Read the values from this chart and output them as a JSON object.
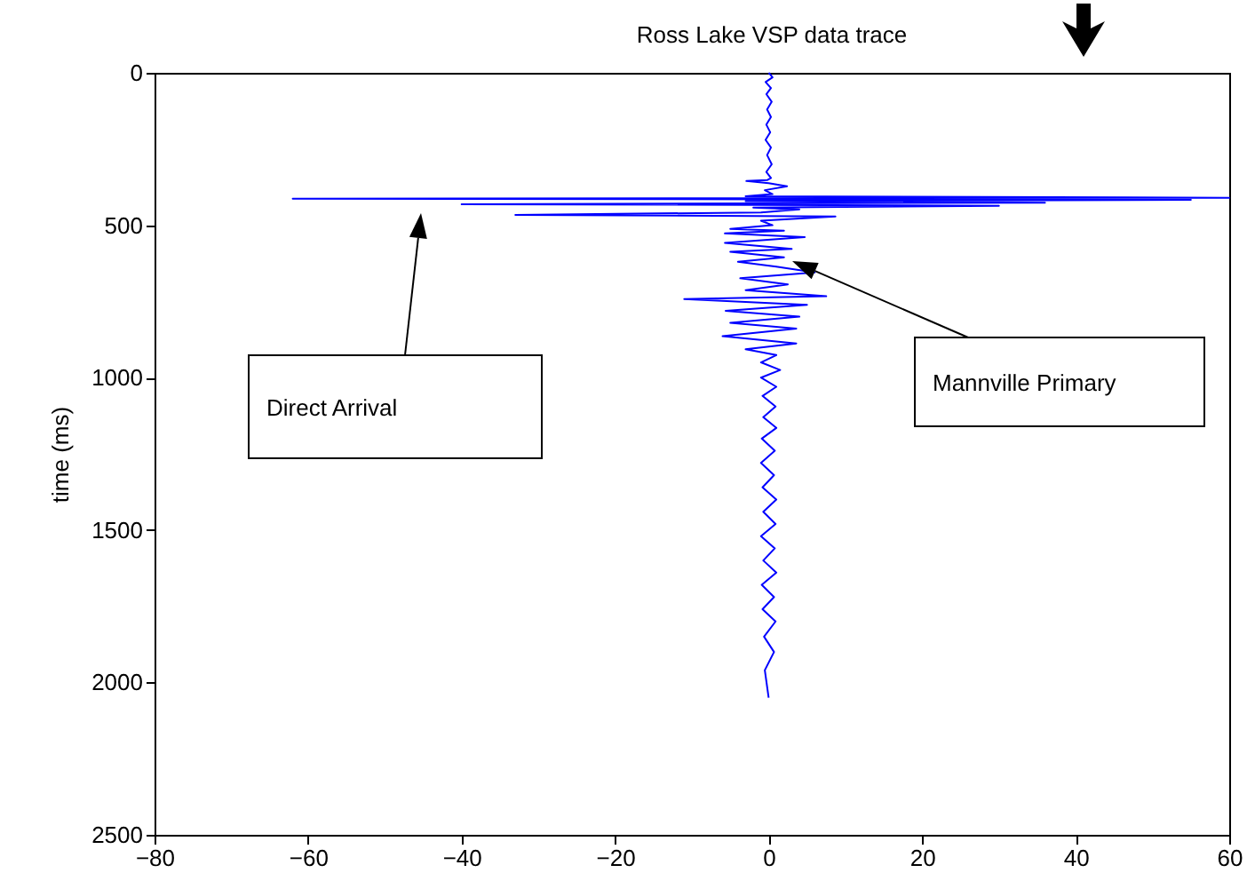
{
  "chart_data": {
    "type": "line",
    "title": "Ross Lake VSP data trace",
    "ylabel": "time (ms)",
    "x": [
      0,
      0.2,
      0.5,
      -0.4,
      0.3,
      -0.3,
      0.4,
      -0.2,
      0.3,
      -0.3,
      0.2,
      -0.4,
      0.3,
      -0.2,
      0.4,
      -0.3,
      0.3,
      -0.2,
      -2.9,
      0,
      2.4,
      -0.5,
      0.5,
      -3,
      60,
      -62,
      55,
      -3,
      36,
      -40,
      30,
      -2,
      4,
      -1,
      -33,
      8.7,
      -1,
      0.5,
      -5,
      2,
      -5.7,
      4.7,
      -5.7,
      3,
      -5,
      2,
      -4,
      1,
      6,
      -3.7,
      2.5,
      -3,
      7.5,
      -11,
      5,
      -5.6,
      4,
      -5,
      3.6,
      -6,
      3.6,
      -3,
      1,
      -1,
      1.5,
      -1,
      1,
      -0.8,
      0.9,
      -0.7,
      1,
      -0.9,
      0.8,
      -1,
      0.7,
      -0.8,
      1,
      -0.7,
      0.9,
      -1,
      0.8,
      -0.7,
      1,
      -0.9,
      0.7,
      -0.8,
      0.9,
      -0.6,
      0.7,
      -0.5,
      0
    ],
    "values": [
      0,
      5,
      15,
      30,
      50,
      70,
      95,
      120,
      145,
      170,
      195,
      220,
      245,
      270,
      300,
      325,
      345,
      352,
      355,
      362,
      372,
      385,
      398,
      405,
      410,
      413,
      417,
      421,
      426,
      431,
      436,
      442,
      448,
      458,
      466,
      471,
      485,
      500,
      512,
      518,
      527,
      539,
      558,
      578,
      587,
      605,
      620,
      636,
      655,
      674,
      694,
      713,
      733,
      742,
      761,
      781,
      800,
      820,
      839,
      864,
      888,
      907,
      926,
      950,
      975,
      1000,
      1030,
      1060,
      1095,
      1130,
      1165,
      1200,
      1240,
      1280,
      1320,
      1360,
      1400,
      1440,
      1480,
      1520,
      1560,
      1600,
      1640,
      1680,
      1720,
      1760,
      1800,
      1850,
      1900,
      1960,
      2050
    ],
    "color": "#0000ff",
    "xlim": [
      -80,
      60
    ],
    "xticks": [
      -80,
      -60,
      -40,
      -20,
      0,
      20,
      40,
      60
    ],
    "ylim": [
      2500,
      0
    ],
    "yticks": [
      0,
      500,
      1000,
      1500,
      2000,
      2500
    ],
    "grid": false,
    "annotations": [
      "Direct Arrival",
      "Mannville Primary"
    ]
  }
}
